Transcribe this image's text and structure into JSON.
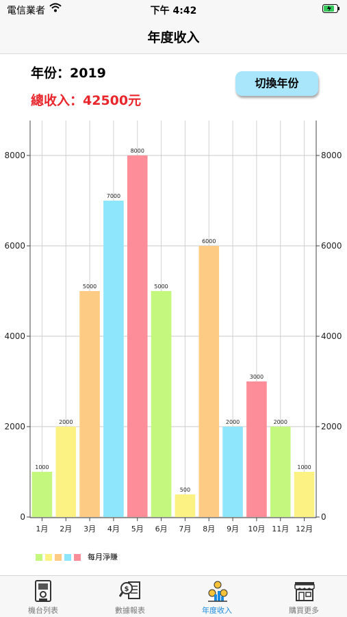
{
  "status_bar": {
    "carrier": "電信業者",
    "time": "下午 4:42"
  },
  "nav": {
    "title": "年度收入"
  },
  "summary": {
    "year_label": "年份：2019",
    "total_label": "總收入：42500元",
    "switch_button": "切換年份"
  },
  "chart_data": {
    "type": "bar",
    "categories": [
      "1月",
      "2月",
      "3月",
      "4月",
      "5月",
      "6月",
      "7月",
      "8月",
      "9月",
      "10月",
      "11月",
      "12月"
    ],
    "series": [
      {
        "name": "每月淨賺",
        "values": [
          1000,
          2000,
          5000,
          7000,
          8000,
          5000,
          500,
          6000,
          2000,
          3000,
          2000,
          1000
        ]
      }
    ],
    "bar_colors": [
      "#c4f77d",
      "#fbf283",
      "#fecb84",
      "#8de6fb",
      "#fd8d98",
      "#c4f77d",
      "#fbf283",
      "#fecb84",
      "#8de6fb",
      "#fd8d98",
      "#c4f77d",
      "#fbf283"
    ],
    "ylim": [
      0,
      8000
    ],
    "yticks": [
      0,
      2000,
      4000,
      6000,
      8000
    ],
    "grid": true,
    "legend_position": "bottom-left",
    "title": "",
    "xlabel": "",
    "ylabel": ""
  },
  "legend": {
    "colors": [
      "#c4f77d",
      "#fbf283",
      "#fecb84",
      "#8de6fb",
      "#fd8d98"
    ],
    "label": "每月淨賺"
  },
  "tabs": [
    {
      "label": "機台列表",
      "icon": "machine-icon",
      "active": false
    },
    {
      "label": "數據報表",
      "icon": "report-icon",
      "active": false
    },
    {
      "label": "年度收入",
      "icon": "income-icon",
      "active": true
    },
    {
      "label": "購買更多",
      "icon": "shop-icon",
      "active": false
    }
  ]
}
